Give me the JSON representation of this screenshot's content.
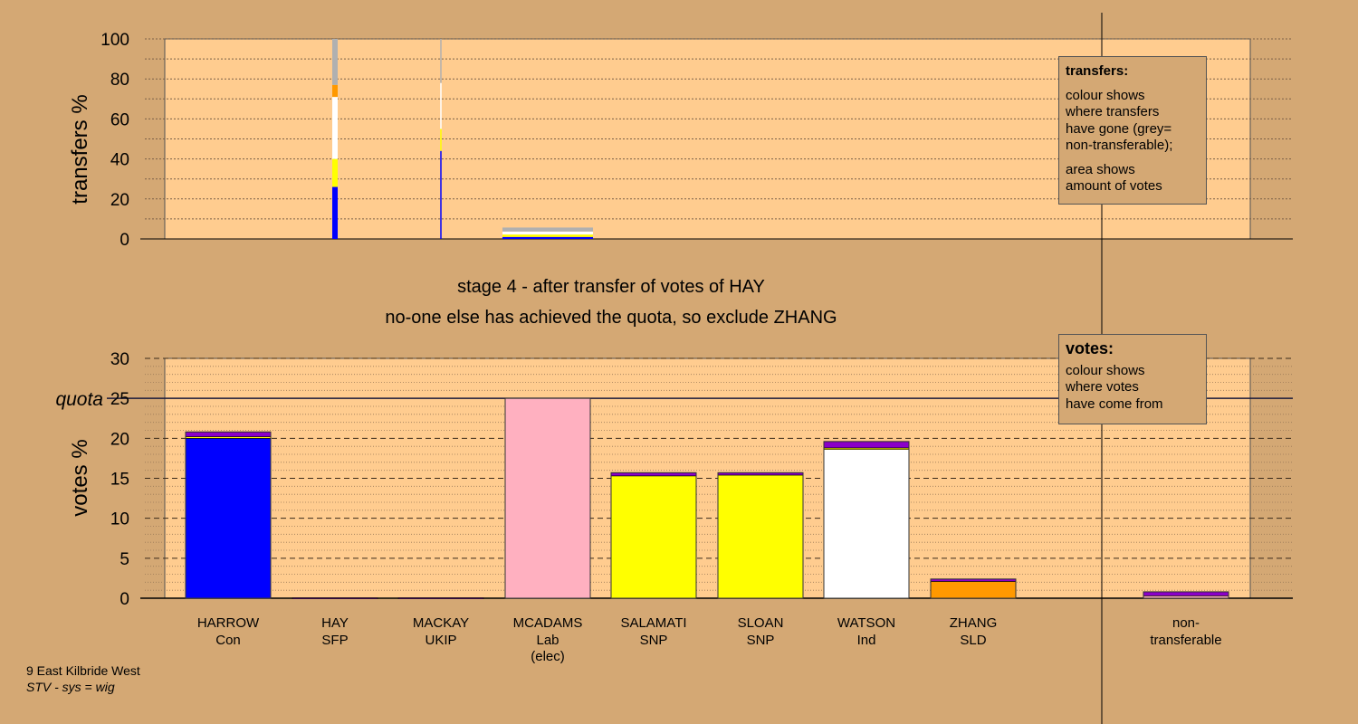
{
  "chart_data": [
    {
      "type": "bar",
      "title": "",
      "ylabel": "transfers %",
      "ylim": [
        0,
        100
      ],
      "yticks": [
        0,
        20,
        40,
        60,
        80,
        100
      ],
      "description_note": "",
      "stacks": [
        {
          "candidate": "HAY",
          "segments": [
            {
              "from": "HARROW",
              "color": "#0000ff",
              "value": 26
            },
            {
              "from": "SALAMATI/SLOAN",
              "color": "#ffff00",
              "value": 14
            },
            {
              "from": "WATSON",
              "color": "#ffffff",
              "value": 31
            },
            {
              "from": "ZHANG",
              "color": "#ff9900",
              "value": 6
            },
            {
              "from": "non-transferable",
              "color": "#b0b0b0",
              "value": 23
            }
          ]
        },
        {
          "candidate": "MACKAY",
          "segments": [
            {
              "from": "HARROW",
              "color": "#0000ff",
              "value": 44
            },
            {
              "from": "SALAMATI/SLOAN",
              "color": "#ffff00",
              "value": 11
            },
            {
              "from": "WATSON",
              "color": "#ffffff",
              "value": 23
            },
            {
              "from": "non-transferable",
              "color": "#b0b0b0",
              "value": 22
            }
          ]
        },
        {
          "candidate": "MCADAMS",
          "segments": [
            {
              "from": "HARROW",
              "color": "#0000ff",
              "value": 1
            },
            {
              "from": "SALAMATI/SLOAN",
              "color": "#ffff00",
              "value": 1.2
            },
            {
              "from": "WATSON",
              "color": "#ffffff",
              "value": 1.5
            },
            {
              "from": "non-transferable",
              "color": "#b0b0b0",
              "value": 2
            }
          ]
        }
      ]
    },
    {
      "type": "bar",
      "title": "",
      "ylabel": "votes %",
      "ylim": [
        0,
        30
      ],
      "yticks": [
        0,
        5,
        10,
        15,
        20,
        25,
        30
      ],
      "quota": 25,
      "quota_label": "quota",
      "categories": [
        {
          "name": "HARROW",
          "party": "Con",
          "elec": "",
          "segments": [
            {
              "color": "#0000ff",
              "value": 20.0
            },
            {
              "color": "#ffff00",
              "value": 0.2
            },
            {
              "color": "#8b00c8",
              "value": 0.6
            }
          ]
        },
        {
          "name": "HAY",
          "party": "SFP",
          "elec": "",
          "segments": [
            {
              "color": "#8b00c8",
              "value": 0.05
            }
          ]
        },
        {
          "name": "MACKAY",
          "party": "UKIP",
          "elec": "",
          "segments": [
            {
              "color": "#8b00c8",
              "value": 0.05
            }
          ]
        },
        {
          "name": "MCADAMS",
          "party": "Lab",
          "elec": "(elec)",
          "segments": [
            {
              "color": "#ffb0c0",
              "value": 25
            }
          ]
        },
        {
          "name": "SALAMATI",
          "party": "SNP",
          "elec": "",
          "segments": [
            {
              "color": "#ffff00",
              "value": 15.3
            },
            {
              "color": "#8b00c8",
              "value": 0.4
            }
          ]
        },
        {
          "name": "SLOAN",
          "party": "SNP",
          "elec": "",
          "segments": [
            {
              "color": "#ffff00",
              "value": 15.4
            },
            {
              "color": "#8b00c8",
              "value": 0.3
            }
          ]
        },
        {
          "name": "WATSON",
          "party": "Ind",
          "elec": "",
          "segments": [
            {
              "color": "#ffffff",
              "value": 18.6
            },
            {
              "color": "#ffff00",
              "value": 0.2
            },
            {
              "color": "#8b00c8",
              "value": 0.8
            }
          ]
        },
        {
          "name": "ZHANG",
          "party": "SLD",
          "elec": "",
          "segments": [
            {
              "color": "#ff9900",
              "value": 2.1
            },
            {
              "color": "#8b00c8",
              "value": 0.3
            }
          ]
        },
        {
          "name": "",
          "party": "",
          "elec": "",
          "segments": []
        },
        {
          "name": "non-",
          "party": "transferable",
          "elec": "",
          "segments": [
            {
              "color": "#ffb0c0",
              "value": 0.3
            },
            {
              "color": "#8b00c8",
              "value": 0.5
            }
          ]
        }
      ]
    }
  ],
  "stage": {
    "line1": "stage 4 - after transfer of votes of HAY",
    "line2": "no-one else has achieved the quota, so exclude ZHANG"
  },
  "legend_transfers": {
    "title": "transfers:",
    "line1": "colour shows",
    "line2": "where transfers",
    "line3": "have gone (grey=",
    "line4": "non-transferable);",
    "line5": "area shows",
    "line6": "amount of votes"
  },
  "legend_votes": {
    "title": "votes:",
    "line1": "colour shows",
    "line2": "where votes",
    "line3": "have come from"
  },
  "footer": {
    "ward": "9 East Kilbride West",
    "system": "STV - sys = wig"
  },
  "colors": {
    "background": "#d4a874",
    "plot_area": "#ffcc8f",
    "axis": "#000000",
    "quota_line": "#1a1a3a"
  }
}
